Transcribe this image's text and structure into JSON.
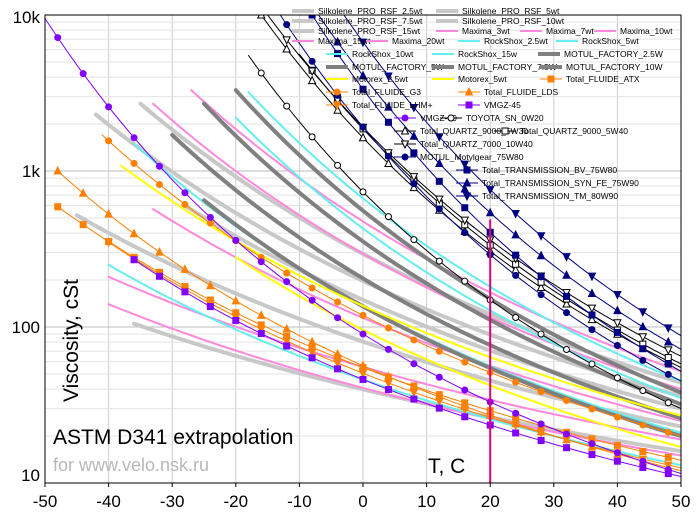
{
  "chart_data": {
    "type": "line",
    "title": "ASTM D341 extrapolation",
    "subtitle": "for www.velo.nsk.ru",
    "xlabel": "T, C",
    "ylabel": "Viscosity, cSt",
    "xlim": [
      -50,
      50
    ],
    "ylim": [
      10,
      10000
    ],
    "yscale": "log",
    "grid": true,
    "legend_position": "top-right",
    "x_ticks": [
      "-50",
      "-40",
      "-30",
      "-20",
      "-10",
      "0",
      "10",
      "20",
      "30",
      "40",
      "50"
    ],
    "y_ticks": [
      "10",
      "100",
      "1k",
      "10k"
    ],
    "marker_line": {
      "x": 20,
      "color": "#e0007a"
    },
    "series": [
      {
        "name": "Silkolene_PRO_RSF_2.5wt",
        "color": "#c8c8c8",
        "width": 4,
        "marker": "none",
        "points": [
          [
            -36,
            105
          ],
          [
            50,
            16
          ]
        ]
      },
      {
        "name": "Silkolene_PRO_RSF_5wt",
        "color": "#c8c8c8",
        "width": 4,
        "marker": "none",
        "points": [
          [
            -45,
            520
          ],
          [
            50,
            23
          ]
        ]
      },
      {
        "name": "Silkolene_PRO_RSF_7.5wt",
        "color": "#c8c8c8",
        "width": 4,
        "marker": "none",
        "points": [
          [
            -28,
            600
          ],
          [
            50,
            30
          ]
        ]
      },
      {
        "name": "Silkolene_PRO_RSF_10wt",
        "color": "#c8c8c8",
        "width": 4,
        "marker": "none",
        "points": [
          [
            -42,
            2300
          ],
          [
            50,
            36
          ]
        ]
      },
      {
        "name": "Silkolene_PRO_RSF_15wt",
        "color": "#c8c8c8",
        "width": 4,
        "marker": "none",
        "points": [
          [
            -35,
            2700
          ],
          [
            50,
            44
          ]
        ]
      },
      {
        "name": "Maxima_3wt",
        "color": "#ff88dd",
        "width": 2,
        "marker": "none",
        "points": [
          [
            -40,
            140
          ],
          [
            50,
            15
          ]
        ]
      },
      {
        "name": "Maxima_7wt",
        "color": "#ff88dd",
        "width": 2,
        "marker": "none",
        "points": [
          [
            -40,
            210
          ],
          [
            50,
            19
          ]
        ]
      },
      {
        "name": "Maxima_10wt",
        "color": "#ff88dd",
        "width": 2,
        "marker": "none",
        "points": [
          [
            -33,
            570
          ],
          [
            50,
            25
          ]
        ]
      },
      {
        "name": "Maxima_15wt",
        "color": "#ff88dd",
        "width": 2,
        "marker": "none",
        "points": [
          [
            -33,
            2700
          ],
          [
            50,
            40
          ]
        ]
      },
      {
        "name": "Maxima_20wt",
        "color": "#ff88dd",
        "width": 2,
        "marker": "none",
        "points": [
          [
            -27,
            3300
          ],
          [
            50,
            52
          ]
        ]
      },
      {
        "name": "RockShox_2.5wt",
        "color": "#66eeee",
        "width": 2,
        "marker": "none",
        "points": [
          [
            -40,
            250
          ],
          [
            50,
            13
          ]
        ]
      },
      {
        "name": "RockShox_5wt",
        "color": "#66eeee",
        "width": 2,
        "marker": "none",
        "points": [
          [
            -36,
            1500
          ],
          [
            50,
            21
          ]
        ]
      },
      {
        "name": "RockShox_10wt",
        "color": "#66eeee",
        "width": 2,
        "marker": "none",
        "points": [
          [
            -20,
            2200
          ],
          [
            50,
            35
          ]
        ]
      },
      {
        "name": "RockShox_15w",
        "color": "#66eeee",
        "width": 2,
        "marker": "none",
        "points": [
          [
            -18,
            3200
          ],
          [
            50,
            45
          ]
        ]
      },
      {
        "name": "MOTUL_FACTORY_2.5W",
        "color": "#808080",
        "width": 4,
        "marker": "none",
        "points": [
          [
            -25,
            650
          ],
          [
            50,
            20
          ]
        ]
      },
      {
        "name": "MOTUL_FACTORY_5W",
        "color": "#808080",
        "width": 4,
        "marker": "none",
        "points": [
          [
            -30,
            1700
          ],
          [
            50,
            26
          ]
        ]
      },
      {
        "name": "MOTUL_FACTORY_7.5W",
        "color": "#808080",
        "width": 4,
        "marker": "none",
        "points": [
          [
            -25,
            2700
          ],
          [
            50,
            32
          ]
        ]
      },
      {
        "name": "MOTUL_FACTORY_10W",
        "color": "#808080",
        "width": 4,
        "marker": "none",
        "points": [
          [
            -20,
            3300
          ],
          [
            50,
            38
          ]
        ]
      },
      {
        "name": "Motorex_2.5wt",
        "color": "#ffff00",
        "width": 2,
        "marker": "none",
        "points": [
          [
            -20,
            280
          ],
          [
            50,
            17
          ]
        ]
      },
      {
        "name": "Motorex_5wt",
        "color": "#ffff00",
        "width": 2,
        "marker": "none",
        "points": [
          [
            -38,
            1080
          ],
          [
            50,
            27
          ]
        ]
      },
      {
        "name": "Total_FLUIDE_ATX",
        "color": "#ff8000",
        "width": 1,
        "marker": "square",
        "points": [
          [
            -48,
            590
          ],
          [
            50,
            14
          ]
        ]
      },
      {
        "name": "Total_FLUIDE_G3",
        "color": "#ff8000",
        "width": 1,
        "marker": "circle",
        "points": [
          [
            -41,
            1700
          ],
          [
            50,
            20
          ]
        ]
      },
      {
        "name": "Total_FLUIDE_LDS",
        "color": "#ff8000",
        "width": 1,
        "marker": "triangle-up",
        "points": [
          [
            -48,
            1000
          ],
          [
            50,
            12
          ]
        ]
      },
      {
        "name": "Total_FLUIDE_LHM+",
        "color": "#ff8000",
        "width": 1,
        "marker": "triangle-down",
        "points": [
          [
            -40,
            350
          ],
          [
            50,
            12.5
          ]
        ]
      },
      {
        "name": "VMGZ-45",
        "color": "#8000ff",
        "width": 1,
        "marker": "square",
        "points": [
          [
            -36,
            270
          ],
          [
            50,
            11
          ]
        ]
      },
      {
        "name": "VMGZ-60",
        "color": "#8000ff",
        "width": 1,
        "marker": "circle",
        "points": [
          [
            -50,
            9500
          ],
          [
            50,
            11.5
          ]
        ]
      },
      {
        "name": "TOYOTA_SN_0W20",
        "color": "#000000",
        "width": 1,
        "marker": "circle-open",
        "points": [
          [
            -18,
            5500
          ],
          [
            50,
            30
          ]
        ]
      },
      {
        "name": "Total_QUARTZ_9000_5W30",
        "color": "#000000",
        "width": 1,
        "marker": "triangle-up-open",
        "points": [
          [
            -16,
            10000
          ],
          [
            50,
            55
          ]
        ]
      },
      {
        "name": "Total_QUARTZ_9000_5W40",
        "color": "#000000",
        "width": 1,
        "marker": "square-open",
        "points": [
          [
            -10,
            5600
          ],
          [
            50,
            58
          ]
        ]
      },
      {
        "name": "Total_QUARTZ_7000_10W40",
        "color": "#000000",
        "width": 1,
        "marker": "triangle-down-open",
        "points": [
          [
            -15,
            10000
          ],
          [
            50,
            65
          ]
        ]
      },
      {
        "name": "MOTUL_Motylgear_75W80",
        "color": "#000080",
        "width": 1,
        "marker": "circle",
        "points": [
          [
            -13,
            10000
          ],
          [
            50,
            45
          ]
        ]
      },
      {
        "name": "Total_TRANSMISSION_BV_75W80",
        "color": "#000080",
        "width": 1,
        "marker": "square",
        "points": [
          [
            -8,
            10000
          ],
          [
            50,
            52
          ]
        ]
      },
      {
        "name": "Total_TRANSMISSION_SYN_FE_75W90",
        "color": "#000080",
        "width": 1,
        "marker": "triangle-up",
        "points": [
          [
            -7,
            10000
          ],
          [
            50,
            72
          ]
        ]
      },
      {
        "name": "Total_TRANSMISSION_TM_80W90",
        "color": "#000080",
        "width": 1,
        "marker": "triangle-down",
        "points": [
          [
            -3,
            10000
          ],
          [
            50,
            88
          ]
        ]
      }
    ]
  }
}
